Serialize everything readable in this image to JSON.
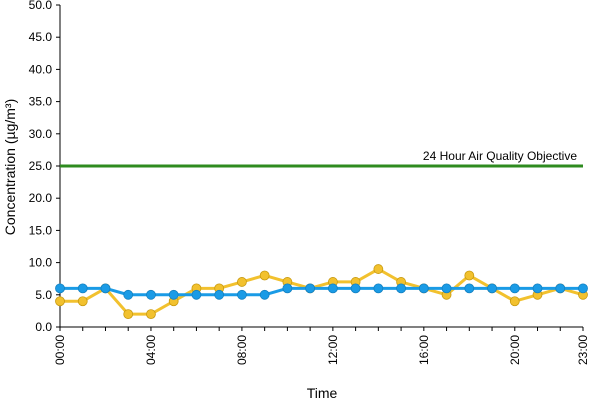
{
  "chart_data": {
    "type": "line",
    "xlabel": "Time",
    "ylabel": "Concentration (µg/m³)",
    "x": [
      "00:00",
      "01:00",
      "02:00",
      "03:00",
      "04:00",
      "05:00",
      "06:00",
      "07:00",
      "08:00",
      "09:00",
      "10:00",
      "11:00",
      "12:00",
      "13:00",
      "14:00",
      "15:00",
      "16:00",
      "17:00",
      "18:00",
      "19:00",
      "20:00",
      "21:00",
      "22:00",
      "23:00"
    ],
    "x_tick_labels": [
      "00:00",
      "04:00",
      "08:00",
      "12:00",
      "16:00",
      "20:00",
      "23:00"
    ],
    "y_tick_labels": [
      "0.0",
      "5.0",
      "10.0",
      "15.0",
      "20.0",
      "25.0",
      "30.0",
      "35.0",
      "40.0",
      "45.0",
      "50.0"
    ],
    "ylim": [
      0,
      50
    ],
    "grid": false,
    "series": [
      {
        "color": "#f2c12e",
        "values": [
          4,
          4,
          6,
          2,
          2,
          4,
          6,
          6,
          7,
          8,
          7,
          6,
          7,
          7,
          9,
          7,
          6,
          5,
          8,
          6,
          4,
          5,
          6,
          5
        ]
      },
      {
        "color": "#1a9be6",
        "values": [
          6,
          6,
          6,
          5,
          5,
          5,
          5,
          5,
          5,
          5,
          6,
          6,
          6,
          6,
          6,
          6,
          6,
          6,
          6,
          6,
          6,
          6,
          6,
          6
        ]
      }
    ],
    "reference_line": {
      "label": "24 Hour Air Quality Objective",
      "value": 25,
      "color": "#2e8b1f"
    }
  }
}
